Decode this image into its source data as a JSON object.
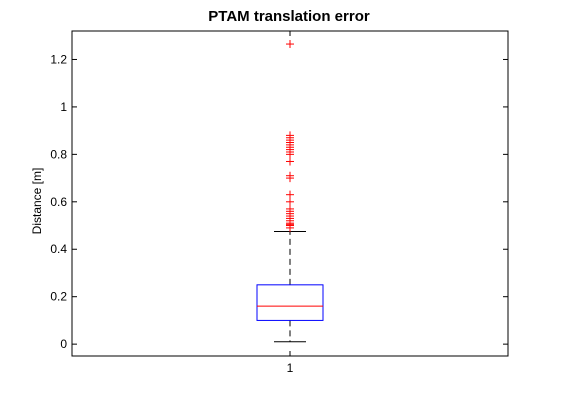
{
  "chart_data": {
    "type": "box",
    "title": "PTAM translation error",
    "xlabel": "",
    "ylabel": "Distance [m]",
    "categories": [
      "1"
    ],
    "ylim": [
      -0.05,
      1.32
    ],
    "yticks": [
      0,
      0.2,
      0.4,
      0.6,
      0.8,
      1,
      1.2
    ],
    "ytick_labels": [
      "0",
      "0.2",
      "0.4",
      "0.6",
      "0.8",
      "1",
      "1.2"
    ],
    "grid": false,
    "series": [
      {
        "box": {
          "lower_whisker": 0.01,
          "q1": 0.1,
          "median": 0.16,
          "q3": 0.25,
          "upper_whisker": 0.475
        },
        "outliers": [
          0.49,
          0.5,
          0.505,
          0.51,
          0.52,
          0.53,
          0.54,
          0.55,
          0.56,
          0.57,
          0.6,
          0.63,
          0.7,
          0.71,
          0.77,
          0.8,
          0.81,
          0.82,
          0.83,
          0.84,
          0.85,
          0.86,
          0.87,
          0.88,
          1.265
        ]
      }
    ],
    "colors": {
      "box": "#0000ff",
      "median": "#ff0000",
      "outlier": "#ff0000",
      "whisker": "#000000"
    }
  }
}
